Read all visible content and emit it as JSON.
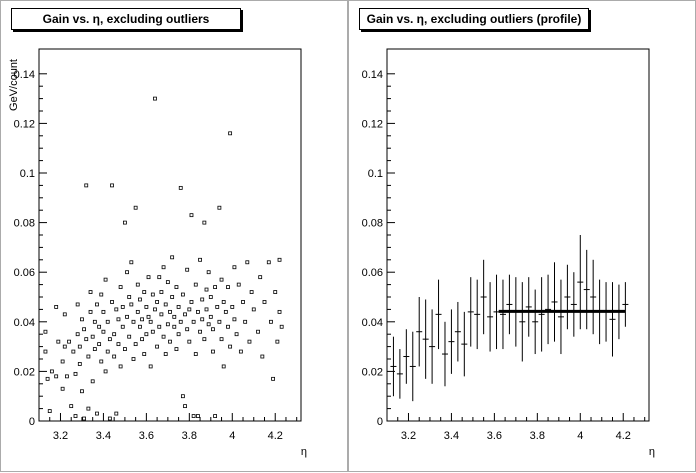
{
  "chart_data": [
    {
      "type": "scatter",
      "title": "Gain vs. η, excluding outliers",
      "xlabel": "η",
      "ylabel": "GeV/count",
      "xlim": [
        3.1,
        4.32
      ],
      "ylim": [
        0,
        0.15
      ],
      "xticks": [
        "3.2",
        "3.4",
        "3.6",
        "3.8",
        "4",
        "4.2"
      ],
      "yticks": [
        "0",
        "0.02",
        "0.04",
        "0.06",
        "0.08",
        "0.1",
        "0.12",
        "0.14"
      ],
      "grid": false,
      "points": [
        [
          3.13,
          0.036
        ],
        [
          3.13,
          0.028
        ],
        [
          3.14,
          0.017
        ],
        [
          3.15,
          0.004
        ],
        [
          3.16,
          0.02
        ],
        [
          3.18,
          0.046
        ],
        [
          3.18,
          0.018
        ],
        [
          3.19,
          0.032
        ],
        [
          3.21,
          0.024
        ],
        [
          3.21,
          0.013
        ],
        [
          3.22,
          0.03
        ],
        [
          3.22,
          0.043
        ],
        [
          3.23,
          0.018
        ],
        [
          3.24,
          0.032
        ],
        [
          3.25,
          0.006
        ],
        [
          3.26,
          0.028
        ],
        [
          3.27,
          0.002
        ],
        [
          3.27,
          0.019
        ],
        [
          3.28,
          0.035
        ],
        [
          3.28,
          0.047
        ],
        [
          3.29,
          0.03
        ],
        [
          3.29,
          0.023
        ],
        [
          3.3,
          0.041
        ],
        [
          3.3,
          0.012
        ],
        [
          3.31,
          0.037
        ],
        [
          3.31,
          0.001
        ],
        [
          3.32,
          0.095
        ],
        [
          3.32,
          0.033
        ],
        [
          3.33,
          0.026
        ],
        [
          3.33,
          0.005
        ],
        [
          3.34,
          0.044
        ],
        [
          3.34,
          0.052
        ],
        [
          3.35,
          0.034
        ],
        [
          3.35,
          0.016
        ],
        [
          3.36,
          0.029
        ],
        [
          3.36,
          0.04
        ],
        [
          3.37,
          0.047
        ],
        [
          3.37,
          0.003
        ],
        [
          3.38,
          0.031
        ],
        [
          3.38,
          0.038
        ],
        [
          3.39,
          0.024
        ],
        [
          3.39,
          0.051
        ],
        [
          3.4,
          0.044
        ],
        [
          3.4,
          0.036
        ],
        [
          3.41,
          0.057
        ],
        [
          3.41,
          0.02
        ],
        [
          3.42,
          0.028
        ],
        [
          3.42,
          0.04
        ],
        [
          3.43,
          0.033
        ],
        [
          3.43,
          0.001
        ],
        [
          3.44,
          0.095
        ],
        [
          3.44,
          0.048
        ],
        [
          3.45,
          0.035
        ],
        [
          3.45,
          0.026
        ],
        [
          3.46,
          0.045
        ],
        [
          3.46,
          0.003
        ],
        [
          3.47,
          0.041
        ],
        [
          3.47,
          0.031
        ],
        [
          3.48,
          0.054
        ],
        [
          3.48,
          0.022
        ],
        [
          3.49,
          0.038
        ],
        [
          3.49,
          0.046
        ],
        [
          3.5,
          0.029
        ],
        [
          3.5,
          0.08
        ],
        [
          3.51,
          0.06
        ],
        [
          3.51,
          0.042
        ],
        [
          3.52,
          0.05
        ],
        [
          3.52,
          0.034
        ],
        [
          3.53,
          0.047
        ],
        [
          3.53,
          0.064
        ],
        [
          3.54,
          0.04
        ],
        [
          3.54,
          0.025
        ],
        [
          3.55,
          0.031
        ],
        [
          3.55,
          0.086
        ],
        [
          3.56,
          0.055
        ],
        [
          3.56,
          0.044
        ],
        [
          3.57,
          0.038
        ],
        [
          3.57,
          0.049
        ],
        [
          3.58,
          0.041
        ],
        [
          3.58,
          0.033
        ],
        [
          3.59,
          0.052
        ],
        [
          3.59,
          0.027
        ],
        [
          3.6,
          0.046
        ],
        [
          3.6,
          0.035
        ],
        [
          3.61,
          0.058
        ],
        [
          3.61,
          0.042
        ],
        [
          3.62,
          0.04
        ],
        [
          3.62,
          0.022
        ],
        [
          3.63,
          0.051
        ],
        [
          3.63,
          0.036
        ],
        [
          3.64,
          0.13
        ],
        [
          3.64,
          0.045
        ],
        [
          3.65,
          0.03
        ],
        [
          3.65,
          0.048
        ],
        [
          3.66,
          0.038
        ],
        [
          3.66,
          0.058
        ],
        [
          3.67,
          0.043
        ],
        [
          3.67,
          0.052
        ],
        [
          3.68,
          0.034
        ],
        [
          3.68,
          0.062
        ],
        [
          3.69,
          0.047
        ],
        [
          3.69,
          0.027
        ],
        [
          3.7,
          0.039
        ],
        [
          3.7,
          0.056
        ],
        [
          3.71,
          0.044
        ],
        [
          3.71,
          0.032
        ],
        [
          3.72,
          0.05
        ],
        [
          3.72,
          0.066
        ],
        [
          3.73,
          0.038
        ],
        [
          3.73,
          0.042
        ],
        [
          3.74,
          0.029
        ],
        [
          3.74,
          0.054
        ],
        [
          3.75,
          0.046
        ],
        [
          3.75,
          0.035
        ],
        [
          3.76,
          0.094
        ],
        [
          3.76,
          0.04
        ],
        [
          3.77,
          0.01
        ],
        [
          3.77,
          0.051
        ],
        [
          3.78,
          0.043
        ],
        [
          3.78,
          0.006
        ],
        [
          3.79,
          0.037
        ],
        [
          3.79,
          0.061
        ],
        [
          3.8,
          0.045
        ],
        [
          3.8,
          0.032
        ],
        [
          3.81,
          0.083
        ],
        [
          3.81,
          0.048
        ],
        [
          3.82,
          0.002
        ],
        [
          3.82,
          0.04
        ],
        [
          3.83,
          0.055
        ],
        [
          3.83,
          0.027
        ],
        [
          3.84,
          0.044
        ],
        [
          3.84,
          0.002
        ],
        [
          3.85,
          0.036
        ],
        [
          3.85,
          0.065
        ],
        [
          3.86,
          0.049
        ],
        [
          3.86,
          0.041
        ],
        [
          3.87,
          0.08
        ],
        [
          3.87,
          0.033
        ],
        [
          3.88,
          0.053
        ],
        [
          3.88,
          0.045
        ],
        [
          3.89,
          0.039
        ],
        [
          3.89,
          0.06
        ],
        [
          3.9,
          0.042
        ],
        [
          3.9,
          0.05
        ],
        [
          3.91,
          0.037
        ],
        [
          3.91,
          0.028
        ],
        [
          3.92,
          0.002
        ],
        [
          3.92,
          0.054
        ],
        [
          3.93,
          0.046
        ],
        [
          3.94,
          0.086
        ],
        [
          3.94,
          0.04
        ],
        [
          3.95,
          0.057
        ],
        [
          3.95,
          0.033
        ],
        [
          3.96,
          0.048
        ],
        [
          3.96,
          0.022
        ],
        [
          3.97,
          0.044
        ],
        [
          3.98,
          0.038
        ],
        [
          3.98,
          0.054
        ],
        [
          3.99,
          0.116
        ],
        [
          3.99,
          0.03
        ],
        [
          4.0,
          0.046
        ],
        [
          4.01,
          0.062
        ],
        [
          4.01,
          0.041
        ],
        [
          4.02,
          0.035
        ],
        [
          4.03,
          0.055
        ],
        [
          4.04,
          0.028
        ],
        [
          4.05,
          0.048
        ],
        [
          4.06,
          0.04
        ],
        [
          4.07,
          0.064
        ],
        [
          4.08,
          0.032
        ],
        [
          4.09,
          0.052
        ],
        [
          4.1,
          0.045
        ],
        [
          4.12,
          0.036
        ],
        [
          4.13,
          0.058
        ],
        [
          4.14,
          0.026
        ],
        [
          4.15,
          0.048
        ],
        [
          4.17,
          0.064
        ],
        [
          4.18,
          0.04
        ],
        [
          4.19,
          0.017
        ],
        [
          4.2,
          0.052
        ],
        [
          4.21,
          0.032
        ],
        [
          4.22,
          0.065
        ],
        [
          4.22,
          0.044
        ],
        [
          4.23,
          0.038
        ]
      ]
    },
    {
      "type": "profile",
      "title": "Gain vs. η, excluding outliers (profile)",
      "xlabel": "η",
      "ylabel": "",
      "xlim": [
        3.1,
        4.32
      ],
      "ylim": [
        0,
        0.15
      ],
      "xticks": [
        "3.2",
        "3.4",
        "3.6",
        "3.8",
        "4",
        "4.2"
      ],
      "yticks": [
        "0",
        "0.02",
        "0.04",
        "0.06",
        "0.08",
        "0.1",
        "0.12",
        "0.14"
      ],
      "grid": false,
      "x": [
        3.13,
        3.16,
        3.19,
        3.22,
        3.25,
        3.28,
        3.31,
        3.34,
        3.37,
        3.4,
        3.43,
        3.46,
        3.49,
        3.52,
        3.55,
        3.58,
        3.61,
        3.64,
        3.67,
        3.7,
        3.73,
        3.76,
        3.79,
        3.82,
        3.85,
        3.88,
        3.91,
        3.94,
        3.97,
        4.0,
        4.03,
        4.06,
        4.09,
        4.12,
        4.15,
        4.18,
        4.21
      ],
      "y": [
        0.022,
        0.019,
        0.026,
        0.022,
        0.036,
        0.033,
        0.03,
        0.043,
        0.027,
        0.032,
        0.036,
        0.031,
        0.044,
        0.043,
        0.05,
        0.042,
        0.044,
        0.043,
        0.047,
        0.044,
        0.04,
        0.046,
        0.04,
        0.043,
        0.045,
        0.048,
        0.042,
        0.05,
        0.047,
        0.056,
        0.053,
        0.05,
        0.044,
        0.044,
        0.041,
        0.044,
        0.047
      ],
      "err": [
        0.012,
        0.01,
        0.011,
        0.014,
        0.014,
        0.016,
        0.015,
        0.014,
        0.013,
        0.013,
        0.012,
        0.013,
        0.014,
        0.014,
        0.015,
        0.014,
        0.015,
        0.014,
        0.012,
        0.014,
        0.016,
        0.012,
        0.013,
        0.015,
        0.014,
        0.016,
        0.015,
        0.013,
        0.013,
        0.019,
        0.016,
        0.015,
        0.013,
        0.012,
        0.015,
        0.011,
        0.009
      ],
      "fit": {
        "x": [
          3.62,
          4.21
        ],
        "y": 0.0442
      }
    }
  ]
}
